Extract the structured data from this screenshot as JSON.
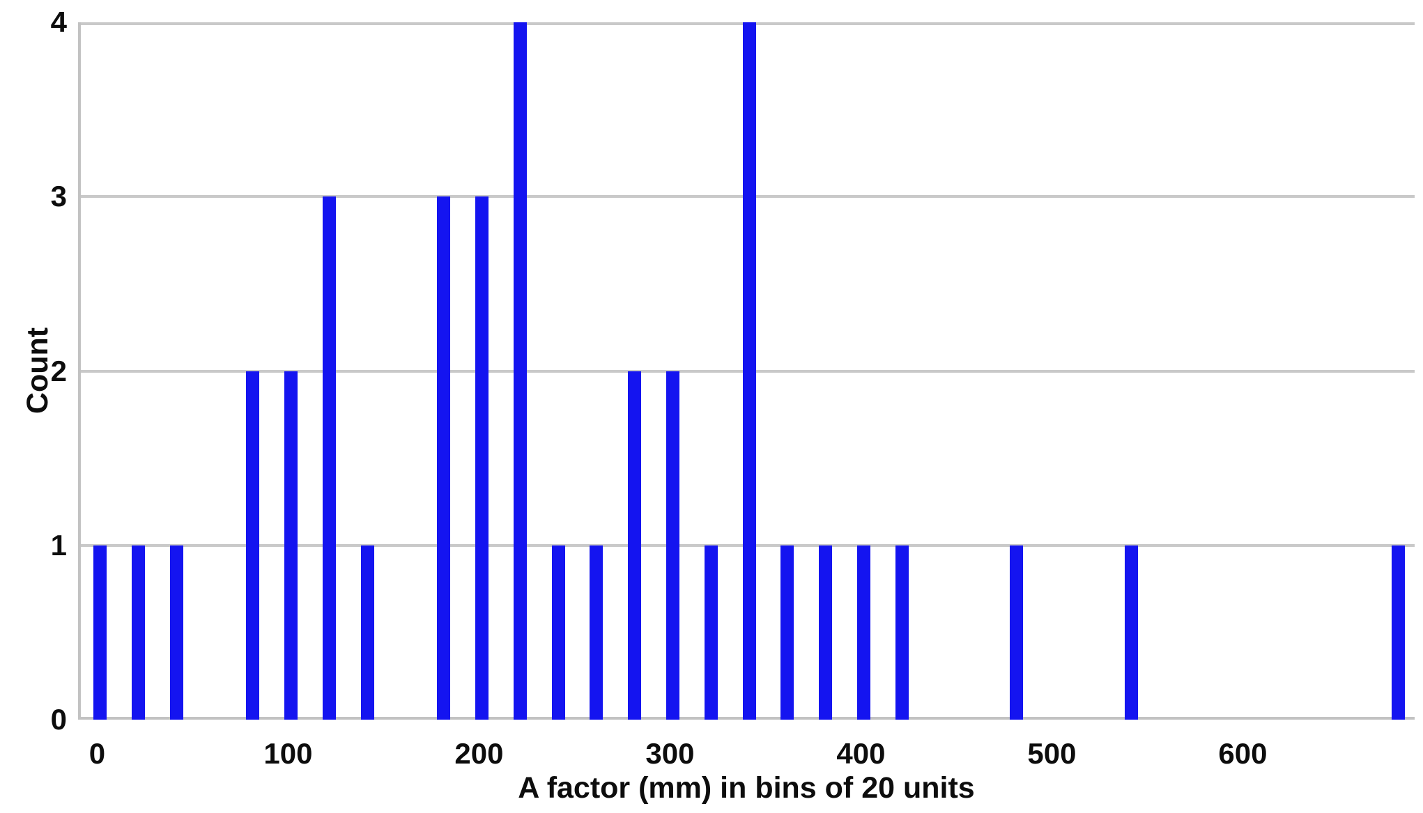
{
  "chart_data": {
    "type": "bar",
    "title": "",
    "xlabel": "A factor (mm) in bins of 20 units",
    "ylabel": "Count",
    "bin_width": 20,
    "categories": [
      0,
      20,
      40,
      80,
      100,
      120,
      140,
      180,
      200,
      220,
      240,
      260,
      280,
      300,
      320,
      340,
      360,
      380,
      400,
      420,
      480,
      540,
      680
    ],
    "values": [
      1,
      1,
      1,
      2,
      2,
      3,
      1,
      3,
      3,
      4,
      1,
      1,
      2,
      2,
      1,
      4,
      1,
      1,
      1,
      1,
      1,
      1,
      1
    ],
    "x_ticks": [
      0,
      100,
      200,
      300,
      400,
      500,
      600
    ],
    "y_ticks": [
      0,
      1,
      2,
      3,
      4
    ],
    "xlim": [
      -10,
      690
    ],
    "ylim": [
      0,
      4
    ],
    "grid": "horizontal",
    "legend_position": "none",
    "bar_color": "#1414f0",
    "gridline_color": "#c9c9c9",
    "axis_color": "#c2c2c2",
    "text_color": "#0d0d0d"
  }
}
